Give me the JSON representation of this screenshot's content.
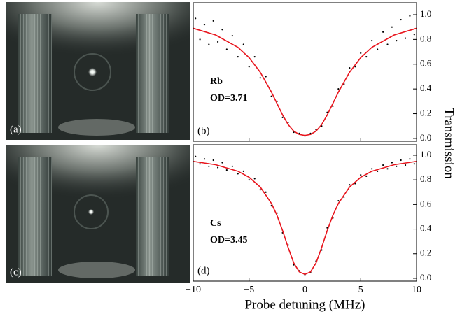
{
  "images": [
    {
      "label": "(a)"
    },
    {
      "label": "(c)"
    }
  ],
  "chart_data": [
    {
      "type": "scatter",
      "panel_label": "(b)",
      "annotations": [
        "Rb",
        "OD=3.71"
      ],
      "ylabel": "Transmission",
      "x": [
        -9.8,
        -9.4,
        -9,
        -8.6,
        -8.2,
        -7.8,
        -7.4,
        -7,
        -6.5,
        -6,
        -5.5,
        -5,
        -4.5,
        -4,
        -3.5,
        -3,
        -2.5,
        -2,
        -1.5,
        -1,
        -0.5,
        0,
        0.5,
        1,
        1.5,
        2,
        2.5,
        3,
        3.5,
        4,
        4.5,
        5,
        5.5,
        6,
        6.5,
        7,
        7.4,
        7.8,
        8.2,
        8.6,
        9,
        9.4,
        9.8
      ],
      "values": [
        0.97,
        0.8,
        0.92,
        0.76,
        0.95,
        0.78,
        0.88,
        0.72,
        0.83,
        0.66,
        0.76,
        0.58,
        0.66,
        0.49,
        0.5,
        0.34,
        0.3,
        0.17,
        0.13,
        0.05,
        0.04,
        0.02,
        0.04,
        0.07,
        0.1,
        0.21,
        0.26,
        0.4,
        0.44,
        0.57,
        0.58,
        0.69,
        0.66,
        0.79,
        0.72,
        0.86,
        0.76,
        0.9,
        0.79,
        0.96,
        0.81,
        0.99,
        0.84
      ],
      "color": "#000000",
      "fit": {
        "x": [
          -10,
          -8,
          -6,
          -5,
          -4,
          -3,
          -2.5,
          -2,
          -1.5,
          -1,
          -0.5,
          0,
          0.5,
          1,
          1.5,
          2,
          2.5,
          3,
          4,
          5,
          6,
          8,
          10
        ],
        "values": [
          0.89,
          0.836,
          0.736,
          0.653,
          0.535,
          0.375,
          0.282,
          0.19,
          0.112,
          0.059,
          0.032,
          0.024,
          0.032,
          0.059,
          0.112,
          0.19,
          0.282,
          0.375,
          0.535,
          0.653,
          0.736,
          0.836,
          0.89
        ],
        "color": "#e8141c"
      },
      "zero_line": true,
      "xlim": [
        -10,
        10
      ],
      "xticks": [
        -10,
        -5,
        0,
        5,
        10
      ],
      "xtick_labels": false,
      "ylim": [
        -0.023,
        1.096
      ],
      "yticks": [
        {
          "value": 0,
          "label": "0.0"
        },
        {
          "value": 0.2,
          "label": "0.2"
        },
        {
          "value": 0.4,
          "label": "0.4"
        },
        {
          "value": 0.6,
          "label": "0.6"
        },
        {
          "value": 0.8,
          "label": "0.8"
        },
        {
          "value": 1,
          "label": "1.0"
        }
      ]
    },
    {
      "type": "scatter",
      "panel_label": "(d)",
      "annotations": [
        "Cs",
        "OD=3.45"
      ],
      "xlabel": "Probe detuning (MHz)",
      "x": [
        -9.8,
        -9.4,
        -9,
        -8.6,
        -8.2,
        -7.8,
        -7.4,
        -7,
        -6.5,
        -6,
        -5.5,
        -5,
        -4.5,
        -4,
        -3.5,
        -3,
        -2.5,
        -2,
        -1.5,
        -1,
        -0.5,
        0,
        0.5,
        1,
        1.5,
        2,
        2.5,
        3,
        3.5,
        4,
        4.5,
        5,
        5.5,
        6,
        6.5,
        7,
        7.4,
        7.8,
        8.2,
        8.6,
        9,
        9.4,
        9.8
      ],
      "values": [
        0.99,
        0.93,
        0.97,
        0.91,
        0.96,
        0.9,
        0.94,
        0.88,
        0.91,
        0.85,
        0.87,
        0.8,
        0.81,
        0.72,
        0.7,
        0.59,
        0.53,
        0.37,
        0.27,
        0.11,
        0.06,
        0.03,
        0.05,
        0.14,
        0.23,
        0.41,
        0.49,
        0.63,
        0.66,
        0.76,
        0.77,
        0.84,
        0.83,
        0.89,
        0.87,
        0.92,
        0.89,
        0.94,
        0.91,
        0.96,
        0.92,
        0.97,
        0.93
      ],
      "color": "#000000",
      "fit": {
        "x": [
          -10,
          -8,
          -6,
          -5,
          -4,
          -3,
          -2.5,
          -2,
          -1.5,
          -1,
          -0.5,
          0,
          0.5,
          1,
          1.5,
          2,
          2.5,
          3,
          4,
          5,
          6,
          8,
          10
        ],
        "values": [
          0.95,
          0.923,
          0.87,
          0.821,
          0.742,
          0.609,
          0.511,
          0.388,
          0.25,
          0.125,
          0.052,
          0.032,
          0.052,
          0.125,
          0.25,
          0.388,
          0.511,
          0.609,
          0.742,
          0.821,
          0.87,
          0.923,
          0.95
        ],
        "color": "#e8141c"
      },
      "zero_line": true,
      "xlim": [
        -10,
        10
      ],
      "xticks": [
        {
          "value": -10,
          "label": "−10"
        },
        {
          "value": -5,
          "label": "−5"
        },
        0,
        5,
        10
      ],
      "xtick_labels": true,
      "ylim": [
        -0.023,
        1.085
      ],
      "yticks": [
        {
          "value": 0,
          "label": "0.0"
        },
        {
          "value": 0.2,
          "label": "0.2"
        },
        {
          "value": 0.4,
          "label": "0.4"
        },
        {
          "value": 0.6,
          "label": "0.6"
        },
        {
          "value": 0.8,
          "label": "0.8"
        },
        {
          "value": 1,
          "label": "1.0"
        }
      ]
    }
  ]
}
